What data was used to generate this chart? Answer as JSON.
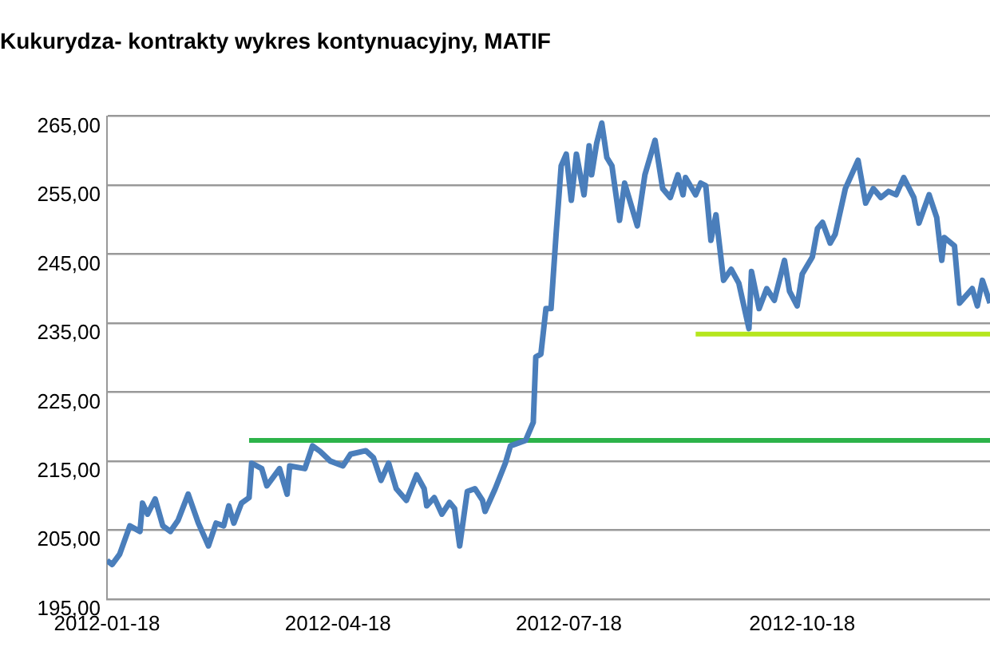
{
  "chart_data": {
    "type": "line",
    "title": "Kukurydza- kontrakty wykres kontynuacyjny, MATIF",
    "xlim": [
      "2012-01-18",
      "2012-12-31"
    ],
    "xticks": [
      {
        "value": "2012-01-18",
        "label": "2012-01-18"
      },
      {
        "value": "2012-04-18",
        "label": "2012-04-18"
      },
      {
        "value": "2012-07-18",
        "label": "2012-07-18"
      },
      {
        "value": "2012-10-18",
        "label": "2012-10-18"
      }
    ],
    "ylim": [
      195,
      265
    ],
    "yticks": [
      {
        "value": 195,
        "label": "195,00"
      },
      {
        "value": 205,
        "label": "205,00"
      },
      {
        "value": 215,
        "label": "215,00"
      },
      {
        "value": 225,
        "label": "225,00"
      },
      {
        "value": 235,
        "label": "235,00"
      },
      {
        "value": 245,
        "label": "245,00"
      },
      {
        "value": 255,
        "label": "255,00"
      },
      {
        "value": 265,
        "label": "265,00"
      }
    ],
    "grid": "y",
    "legend": false,
    "series": [
      {
        "color": "#4a7ebb",
        "x": [
          "2012-01-18",
          "2012-01-20",
          "2012-01-23",
          "2012-01-27",
          "2012-01-31",
          "2012-02-01",
          "2012-02-03",
          "2012-02-06",
          "2012-02-09",
          "2012-02-12",
          "2012-02-15",
          "2012-02-19",
          "2012-02-23",
          "2012-02-27",
          "2012-03-01",
          "2012-03-04",
          "2012-03-06",
          "2012-03-08",
          "2012-03-11",
          "2012-03-14",
          "2012-03-15",
          "2012-03-19",
          "2012-03-21",
          "2012-03-26",
          "2012-03-29",
          "2012-03-30",
          "2012-04-05",
          "2012-04-08",
          "2012-04-11",
          "2012-04-15",
          "2012-04-20",
          "2012-04-23",
          "2012-04-29",
          "2012-05-02",
          "2012-05-05",
          "2012-05-08",
          "2012-05-11",
          "2012-05-15",
          "2012-05-19",
          "2012-05-22",
          "2012-05-23",
          "2012-05-26",
          "2012-05-29",
          "2012-06-01",
          "2012-06-03",
          "2012-06-05",
          "2012-06-08",
          "2012-06-11",
          "2012-06-14",
          "2012-06-15",
          "2012-06-19",
          "2012-06-23",
          "2012-06-25",
          "2012-07-01",
          "2012-07-04",
          "2012-07-05",
          "2012-07-07",
          "2012-07-09",
          "2012-07-11",
          "2012-07-13",
          "2012-07-15",
          "2012-07-17",
          "2012-07-19",
          "2012-07-21",
          "2012-07-24",
          "2012-07-26",
          "2012-07-27",
          "2012-07-29",
          "2012-07-31",
          "2012-08-02",
          "2012-08-04",
          "2012-08-07",
          "2012-08-09",
          "2012-08-14",
          "2012-08-17",
          "2012-08-21",
          "2012-08-24",
          "2012-08-27",
          "2012-08-30",
          "2012-09-01",
          "2012-09-02",
          "2012-09-06",
          "2012-09-08",
          "2012-09-10",
          "2012-09-12",
          "2012-09-14",
          "2012-09-17",
          "2012-09-20",
          "2012-09-23",
          "2012-09-27",
          "2012-09-28",
          "2012-10-01",
          "2012-10-04",
          "2012-10-07",
          "2012-10-11",
          "2012-10-13",
          "2012-10-16",
          "2012-10-18",
          "2012-10-22",
          "2012-10-24",
          "2012-10-26",
          "2012-10-29",
          "2012-10-31",
          "2012-11-04",
          "2012-11-09",
          "2012-11-12",
          "2012-11-15",
          "2012-11-18",
          "2012-11-21",
          "2012-11-24",
          "2012-11-27",
          "2012-12-01",
          "2012-12-03",
          "2012-12-07",
          "2012-12-10",
          "2012-12-12",
          "2012-12-13",
          "2012-12-17",
          "2012-12-19",
          "2012-12-24",
          "2012-12-26",
          "2012-12-28",
          "2012-12-31"
        ],
        "values": [
          200.6,
          200,
          201.5,
          205.6,
          204.8,
          208.9,
          207.3,
          209.5,
          205.6,
          204.8,
          206.4,
          210.2,
          206,
          202.7,
          206,
          205.6,
          208.5,
          206,
          208.9,
          209.7,
          214.7,
          213.9,
          211.4,
          213.9,
          210.2,
          214.3,
          213.9,
          217.2,
          216.4,
          215,
          214.3,
          216,
          216.5,
          215.5,
          212.2,
          214.7,
          211,
          209.3,
          213,
          211,
          208.5,
          209.7,
          207.3,
          209,
          208.1,
          202.7,
          210.6,
          211,
          209.3,
          207.7,
          211,
          214.7,
          217.2,
          218,
          220.6,
          230.1,
          230.5,
          237.1,
          237.1,
          247.9,
          257.8,
          259.5,
          252.8,
          259.5,
          253.6,
          260.7,
          256.5,
          261.1,
          264,
          259,
          257.8,
          249.9,
          255.3,
          249.1,
          256.5,
          261.5,
          254.5,
          253.2,
          256.5,
          253.6,
          256.1,
          253.6,
          255.3,
          254.9,
          247,
          250.7,
          241.2,
          242.8,
          240.8,
          234.2,
          242.5,
          237.1,
          240,
          238.3,
          244.1,
          239.6,
          237.5,
          242.1,
          244.6,
          248.7,
          249.6,
          246.6,
          247.9,
          254.5,
          258.6,
          252.4,
          254.5,
          253.2,
          254.1,
          253.6,
          256.1,
          253.2,
          249.5,
          253.6,
          250.3,
          244.1,
          247.4,
          246.2,
          237.9,
          240,
          237.5,
          241.2,
          237.9
        ]
      },
      {
        "color": "#2db34a",
        "x": [
          "2012-03-14",
          "2012-12-31"
        ],
        "values": [
          218,
          218
        ]
      },
      {
        "color": "#b5e61d",
        "x": [
          "2012-09-06",
          "2012-12-31"
        ],
        "values": [
          233.4,
          233.4
        ]
      }
    ]
  }
}
